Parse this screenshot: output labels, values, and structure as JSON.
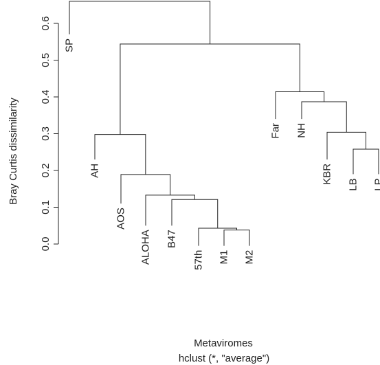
{
  "chart_data": {
    "type": "dendrogram",
    "ylabel": "Bray Curtis dissimilarity",
    "xlabel": "Metaviromes",
    "subtitle": "hclust (*, \"average\")",
    "ylim": [
      0,
      0.6
    ],
    "yticks": [
      0.0,
      0.1,
      0.2,
      0.3,
      0.4,
      0.5,
      0.6
    ],
    "ytick_labels": [
      "0.0",
      "0.1",
      "0.2",
      "0.3",
      "0.4",
      "0.5",
      "0.6"
    ],
    "leaves": [
      {
        "label": "SP",
        "bottom": 0.57
      },
      {
        "label": "AH",
        "bottom": 0.23
      },
      {
        "label": "AOS",
        "bottom": 0.11
      },
      {
        "label": "ALOHA",
        "bottom": 0.05
      },
      {
        "label": "B47",
        "bottom": 0.05
      },
      {
        "label": "57th",
        "bottom": -0.005
      },
      {
        "label": "M1",
        "bottom": -0.005
      },
      {
        "label": "M2",
        "bottom": -0.005
      },
      {
        "label": "Far",
        "bottom": 0.34
      },
      {
        "label": "NH",
        "bottom": 0.34
      },
      {
        "label": "KBR",
        "bottom": 0.23
      },
      {
        "label": "LB",
        "bottom": 0.19
      },
      {
        "label": "LP",
        "bottom": 0.19
      }
    ],
    "merges": [
      {
        "a": "M1",
        "b": "M2",
        "height": 0.038
      },
      {
        "a": "57th",
        "b": "M1+M2",
        "height": 0.043
      },
      {
        "a": "B47",
        "b": "57th+M1+M2",
        "height": 0.121
      },
      {
        "a": "ALOHA",
        "b": "B47+57th+M1+M2",
        "height": 0.133
      },
      {
        "a": "AOS",
        "b": "ALOHA+B47+57th+M1+M2",
        "height": 0.189
      },
      {
        "a": "AH",
        "b": "AOS+ALOHA+B47+57th+M1+M2",
        "height": 0.298
      },
      {
        "a": "LB",
        "b": "LP",
        "height": 0.258
      },
      {
        "a": "KBR",
        "b": "LB+LP",
        "height": 0.304
      },
      {
        "a": "NH",
        "b": "KBR+LB+LP",
        "height": 0.387
      },
      {
        "a": "Far",
        "b": "NH+KBR+LB+LP",
        "height": 0.414
      },
      {
        "a": "AH-cluster",
        "b": "Far-cluster",
        "height": 0.544
      },
      {
        "a": "SP",
        "b": "rest",
        "height": 0.66
      }
    ]
  }
}
